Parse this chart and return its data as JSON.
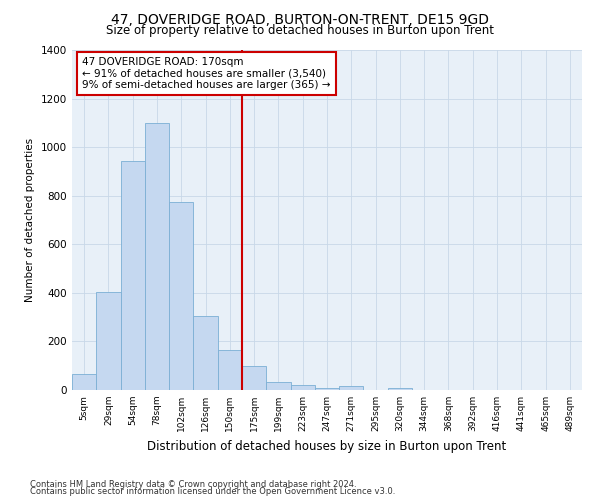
{
  "title": "47, DOVERIDGE ROAD, BURTON-ON-TRENT, DE15 9GD",
  "subtitle": "Size of property relative to detached houses in Burton upon Trent",
  "xlabel": "Distribution of detached houses by size in Burton upon Trent",
  "ylabel": "Number of detached properties",
  "footnote1": "Contains HM Land Registry data © Crown copyright and database right 2024.",
  "footnote2": "Contains public sector information licensed under the Open Government Licence v3.0.",
  "categories": [
    "5sqm",
    "29sqm",
    "54sqm",
    "78sqm",
    "102sqm",
    "126sqm",
    "150sqm",
    "175sqm",
    "199sqm",
    "223sqm",
    "247sqm",
    "271sqm",
    "295sqm",
    "320sqm",
    "344sqm",
    "368sqm",
    "392sqm",
    "416sqm",
    "441sqm",
    "465sqm",
    "489sqm"
  ],
  "values": [
    65,
    405,
    945,
    1100,
    775,
    305,
    165,
    100,
    35,
    20,
    10,
    15,
    0,
    10,
    0,
    0,
    0,
    0,
    0,
    0,
    0
  ],
  "bar_color": "#c5d8f0",
  "bar_edge_color": "#7bafd4",
  "vline_color": "#cc0000",
  "annotation_text": "47 DOVERIDGE ROAD: 170sqm\n← 91% of detached houses are smaller (3,540)\n9% of semi-detached houses are larger (365) →",
  "annotation_box_color": "#cc0000",
  "ylim": [
    0,
    1400
  ],
  "yticks": [
    0,
    200,
    400,
    600,
    800,
    1000,
    1200,
    1400
  ],
  "grid_color": "#c8d8e8",
  "ax_bg_color": "#e8f0f8",
  "background_color": "#ffffff",
  "title_fontsize": 10,
  "subtitle_fontsize": 8.5,
  "footnote_fontsize": 6.0
}
